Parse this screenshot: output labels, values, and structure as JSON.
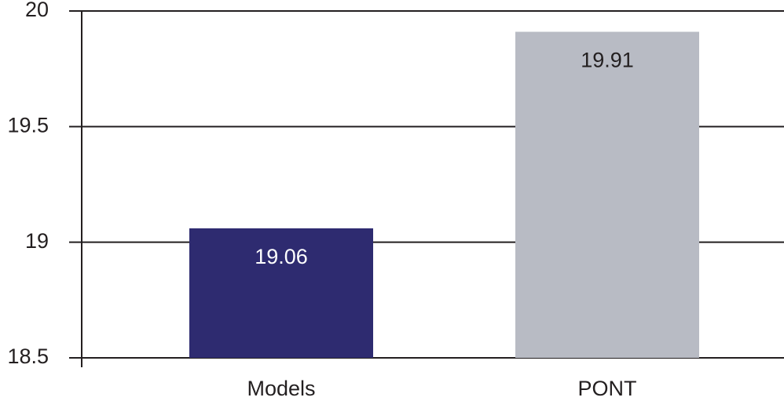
{
  "chart_data": {
    "type": "bar",
    "categories": [
      "Models",
      "PONT"
    ],
    "values": [
      19.06,
      19.91
    ],
    "colors": [
      "#2e2b70",
      "#b8bbc4"
    ],
    "ylim": [
      18.5,
      20
    ],
    "yticks": [
      18.5,
      19,
      19.5,
      20
    ],
    "grid": true
  }
}
